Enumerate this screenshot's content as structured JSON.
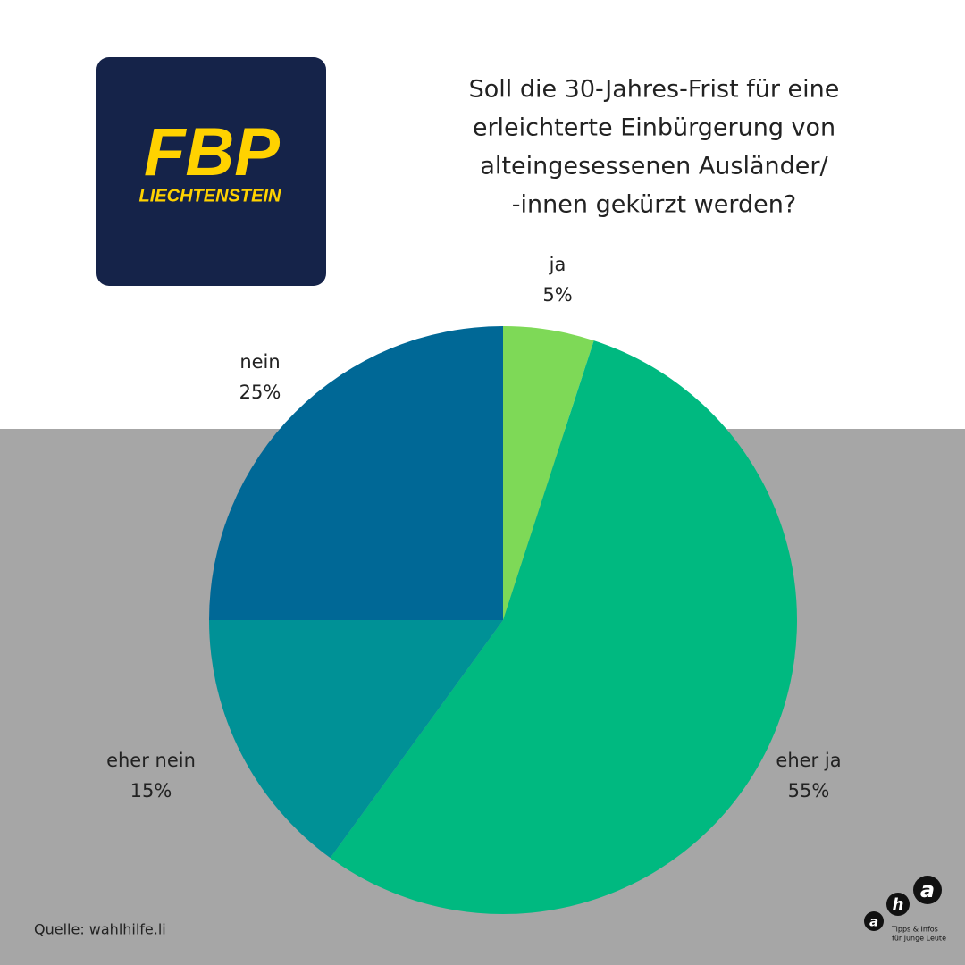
{
  "chart_data": {
    "type": "pie",
    "title": [
      "Soll die 30-Jahres-Frist für eine",
      "erleichterte Einbürgerung von",
      "alteingesessenen Ausländer/",
      "-innen gekürzt werden?"
    ],
    "categories": [
      "ja",
      "eher ja",
      "eher nein",
      "nein"
    ],
    "values": [
      5,
      55,
      15,
      25
    ],
    "value_labels": [
      "5%",
      "55%",
      "15%",
      "25%"
    ],
    "colors": [
      "#7ed957",
      "#00b980",
      "#009196",
      "#006896"
    ]
  },
  "logo": {
    "text": "FBP",
    "subtext": "LIECHTENSTEIN"
  },
  "source": "Quelle: wahlhilfe.li",
  "aha_logo": {
    "letters": [
      "a",
      "h",
      "a"
    ],
    "line1": "Tipps & Infos",
    "line2": "für junge Leute"
  }
}
